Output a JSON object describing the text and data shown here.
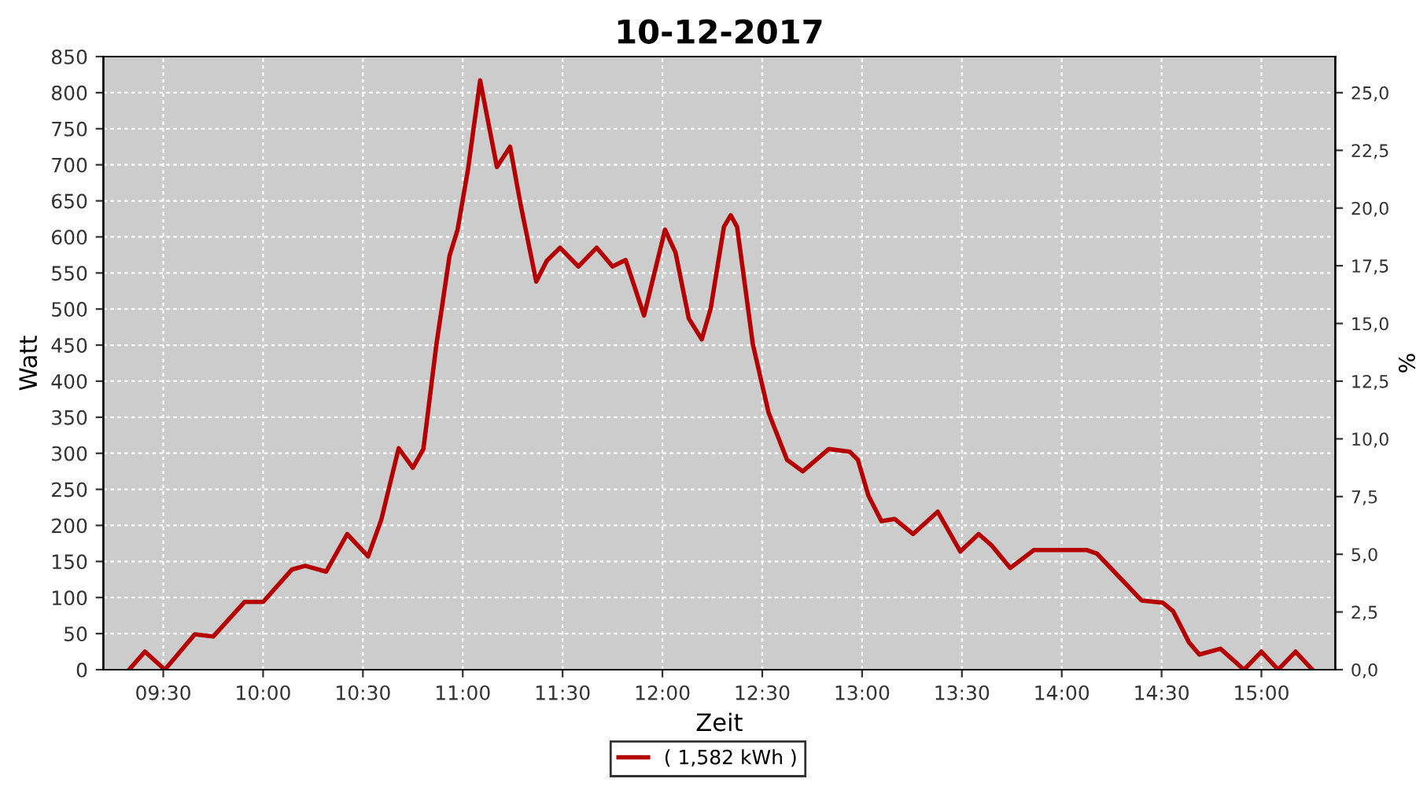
{
  "chart_data": {
    "type": "line",
    "title": "10-12-2017",
    "xlabel": "Zeit",
    "ylabel": "Watt",
    "y2label": "%",
    "x": [
      9.329,
      9.408,
      9.508,
      9.658,
      9.75,
      9.908,
      10.0,
      10.145,
      10.211,
      10.316,
      10.421,
      10.526,
      10.592,
      10.679,
      10.75,
      10.803,
      10.868,
      10.934,
      10.974,
      11.026,
      11.087,
      11.171,
      11.237,
      11.289,
      11.368,
      11.421,
      11.487,
      11.579,
      11.671,
      11.75,
      11.816,
      11.908,
      12.013,
      12.066,
      12.132,
      12.197,
      12.242,
      12.308,
      12.342,
      12.374,
      12.453,
      12.532,
      12.624,
      12.703,
      12.834,
      12.939,
      12.979,
      13.032,
      13.097,
      13.163,
      13.255,
      13.379,
      13.492,
      13.584,
      13.65,
      13.742,
      13.861,
      14.124,
      14.176,
      14.4,
      14.505,
      14.558,
      14.637,
      14.689,
      14.795,
      14.913,
      15.0,
      15.084,
      15.171,
      15.255
    ],
    "series": [
      {
        "name": "( 1,582 kWh )",
        "color": "#b40000",
        "values": [
          0,
          25,
          0,
          49,
          46,
          94,
          94,
          139,
          144,
          136,
          188,
          157,
          208,
          307,
          280,
          306,
          451,
          574,
          610,
          693,
          817,
          697,
          725,
          646,
          538,
          567,
          585,
          559,
          585,
          559,
          568,
          491,
          610,
          578,
          487,
          458,
          501,
          614,
          630,
          614,
          451,
          356,
          291,
          275,
          306,
          302,
          291,
          241,
          206,
          209,
          188,
          219,
          164,
          188,
          172,
          141,
          166,
          166,
          161,
          96,
          93,
          81,
          38,
          21,
          29,
          0,
          25,
          0,
          25,
          0
        ]
      }
    ],
    "xlim": [
      9.2,
      15.37
    ],
    "xticks": [
      {
        "value": 9.5,
        "label": "09:30"
      },
      {
        "value": 10.0,
        "label": "10:00"
      },
      {
        "value": 10.5,
        "label": "10:30"
      },
      {
        "value": 11.0,
        "label": "11:00"
      },
      {
        "value": 11.5,
        "label": "11:30"
      },
      {
        "value": 12.0,
        "label": "12:00"
      },
      {
        "value": 12.5,
        "label": "12:30"
      },
      {
        "value": 13.0,
        "label": "13:00"
      },
      {
        "value": 13.5,
        "label": "13:30"
      },
      {
        "value": 14.0,
        "label": "14:00"
      },
      {
        "value": 14.5,
        "label": "14:30"
      },
      {
        "value": 15.0,
        "label": "15:00"
      }
    ],
    "ylim": [
      0,
      850
    ],
    "yticks": [
      0,
      50,
      100,
      150,
      200,
      250,
      300,
      350,
      400,
      450,
      500,
      550,
      600,
      650,
      700,
      750,
      800,
      850
    ],
    "y2lim": [
      0,
      26.5625
    ],
    "y2ticks": [
      {
        "value": 0,
        "label": "0,0"
      },
      {
        "value": 2.5,
        "label": "2,5"
      },
      {
        "value": 5,
        "label": "5,0"
      },
      {
        "value": 7.5,
        "label": "7,5"
      },
      {
        "value": 10,
        "label": "10,0"
      },
      {
        "value": 12.5,
        "label": "12,5"
      },
      {
        "value": 15,
        "label": "15,0"
      },
      {
        "value": 17.5,
        "label": "17,5"
      },
      {
        "value": 20,
        "label": "20,0"
      },
      {
        "value": 22.5,
        "label": "22,5"
      },
      {
        "value": 25,
        "label": "25,0"
      }
    ],
    "grid": true,
    "legend": "bottom",
    "marker": "none",
    "line_style": "solid"
  }
}
